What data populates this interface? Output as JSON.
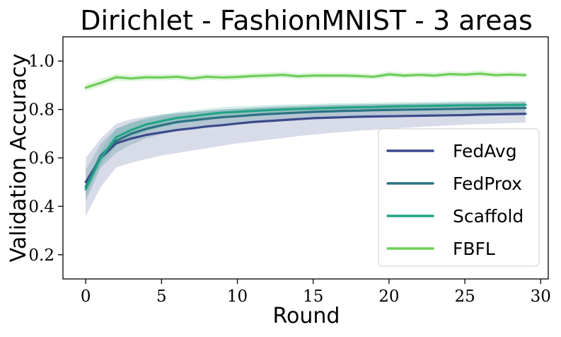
{
  "chart_data": {
    "type": "line",
    "title": "Dirichlet - FashionMNIST - 3 areas",
    "xlabel": "Round",
    "ylabel": "Validation Accuracy",
    "xlim": [
      -1.5,
      30.5
    ],
    "ylim": [
      0.1,
      1.1
    ],
    "xticks": [
      0,
      5,
      10,
      15,
      20,
      25,
      30
    ],
    "yticks": [
      0.2,
      0.4,
      0.6,
      0.8,
      1.0
    ],
    "xtick_labels": [
      "0",
      "5",
      "10",
      "15",
      "20",
      "25",
      "30"
    ],
    "ytick_labels": [
      "0.2",
      "0.4",
      "0.6",
      "0.8",
      "1.0"
    ],
    "grid": false,
    "legend_position": "lower-right",
    "x": [
      0,
      1,
      2,
      3,
      4,
      5,
      6,
      7,
      8,
      9,
      10,
      11,
      12,
      13,
      14,
      15,
      16,
      17,
      18,
      19,
      20,
      21,
      22,
      23,
      24,
      25,
      26,
      27,
      28,
      29
    ],
    "series": [
      {
        "name": "FedAvg",
        "color": "#3b4a8c",
        "values": [
          0.5,
          0.6,
          0.66,
          0.68,
          0.695,
          0.705,
          0.715,
          0.722,
          0.73,
          0.735,
          0.742,
          0.748,
          0.752,
          0.756,
          0.76,
          0.764,
          0.766,
          0.768,
          0.77,
          0.771,
          0.772,
          0.773,
          0.774,
          0.775,
          0.776,
          0.777,
          0.779,
          0.78,
          0.781,
          0.782
        ],
        "lower": [
          0.36,
          0.48,
          0.56,
          0.58,
          0.595,
          0.61,
          0.62,
          0.63,
          0.64,
          0.65,
          0.66,
          0.667,
          0.675,
          0.682,
          0.69,
          0.696,
          0.702,
          0.707,
          0.712,
          0.716,
          0.72,
          0.724,
          0.728,
          0.731,
          0.734,
          0.737,
          0.74,
          0.742,
          0.744,
          0.746
        ],
        "upper": [
          0.6,
          0.68,
          0.74,
          0.76,
          0.77,
          0.78,
          0.785,
          0.79,
          0.795,
          0.8,
          0.803,
          0.806,
          0.809,
          0.811,
          0.813,
          0.815,
          0.817,
          0.818,
          0.82,
          0.821,
          0.822,
          0.823,
          0.824,
          0.825,
          0.826,
          0.827,
          0.828,
          0.829,
          0.83,
          0.831
        ]
      },
      {
        "name": "FedProx",
        "color": "#2c7283",
        "values": [
          0.48,
          0.61,
          0.67,
          0.7,
          0.72,
          0.735,
          0.748,
          0.755,
          0.762,
          0.768,
          0.772,
          0.777,
          0.781,
          0.784,
          0.787,
          0.79,
          0.792,
          0.794,
          0.795,
          0.797,
          0.798,
          0.799,
          0.8,
          0.801,
          0.802,
          0.803,
          0.804,
          0.805,
          0.806,
          0.806
        ],
        "lower": [
          0.42,
          0.56,
          0.62,
          0.655,
          0.68,
          0.698,
          0.712,
          0.722,
          0.73,
          0.737,
          0.742,
          0.748,
          0.753,
          0.757,
          0.761,
          0.764,
          0.767,
          0.77,
          0.772,
          0.774,
          0.776,
          0.778,
          0.779,
          0.781,
          0.782,
          0.783,
          0.784,
          0.785,
          0.786,
          0.786
        ],
        "upper": [
          0.55,
          0.66,
          0.72,
          0.745,
          0.76,
          0.772,
          0.782,
          0.788,
          0.794,
          0.799,
          0.803,
          0.807,
          0.81,
          0.813,
          0.815,
          0.817,
          0.819,
          0.82,
          0.821,
          0.822,
          0.823,
          0.824,
          0.825,
          0.826,
          0.827,
          0.828,
          0.828,
          0.829,
          0.83,
          0.83
        ]
      },
      {
        "name": "Scaffold",
        "color": "#23a486",
        "values": [
          0.47,
          0.6,
          0.685,
          0.715,
          0.738,
          0.752,
          0.765,
          0.772,
          0.78,
          0.787,
          0.79,
          0.794,
          0.797,
          0.8,
          0.802,
          0.804,
          0.806,
          0.808,
          0.809,
          0.81,
          0.812,
          0.813,
          0.814,
          0.815,
          0.816,
          0.817,
          0.817,
          0.818,
          0.818,
          0.819
        ],
        "lower": [
          0.44,
          0.57,
          0.65,
          0.685,
          0.71,
          0.726,
          0.74,
          0.748,
          0.757,
          0.764,
          0.768,
          0.773,
          0.777,
          0.78,
          0.783,
          0.785,
          0.787,
          0.789,
          0.791,
          0.792,
          0.794,
          0.795,
          0.796,
          0.797,
          0.798,
          0.799,
          0.799,
          0.8,
          0.8,
          0.801
        ],
        "upper": [
          0.5,
          0.63,
          0.72,
          0.745,
          0.766,
          0.778,
          0.79,
          0.796,
          0.803,
          0.81,
          0.812,
          0.815,
          0.818,
          0.82,
          0.822,
          0.823,
          0.825,
          0.826,
          0.827,
          0.828,
          0.829,
          0.83,
          0.831,
          0.832,
          0.833,
          0.834,
          0.834,
          0.835,
          0.835,
          0.836
        ]
      },
      {
        "name": "FBFL",
        "color": "#6ece58",
        "values": [
          0.89,
          0.91,
          0.933,
          0.928,
          0.933,
          0.932,
          0.935,
          0.928,
          0.935,
          0.932,
          0.934,
          0.938,
          0.94,
          0.943,
          0.937,
          0.94,
          0.94,
          0.94,
          0.938,
          0.935,
          0.945,
          0.94,
          0.943,
          0.94,
          0.946,
          0.944,
          0.948,
          0.942,
          0.944,
          0.942
        ],
        "lower": [
          0.875,
          0.895,
          0.918,
          0.915,
          0.92,
          0.92,
          0.922,
          0.916,
          0.922,
          0.92,
          0.922,
          0.926,
          0.928,
          0.931,
          0.926,
          0.928,
          0.929,
          0.929,
          0.927,
          0.924,
          0.933,
          0.929,
          0.932,
          0.929,
          0.934,
          0.933,
          0.936,
          0.931,
          0.933,
          0.931
        ],
        "upper": [
          0.905,
          0.928,
          0.948,
          0.942,
          0.946,
          0.945,
          0.948,
          0.941,
          0.948,
          0.945,
          0.947,
          0.951,
          0.953,
          0.956,
          0.949,
          0.953,
          0.952,
          0.952,
          0.95,
          0.947,
          0.958,
          0.952,
          0.955,
          0.952,
          0.959,
          0.956,
          0.961,
          0.954,
          0.956,
          0.954
        ]
      }
    ]
  }
}
